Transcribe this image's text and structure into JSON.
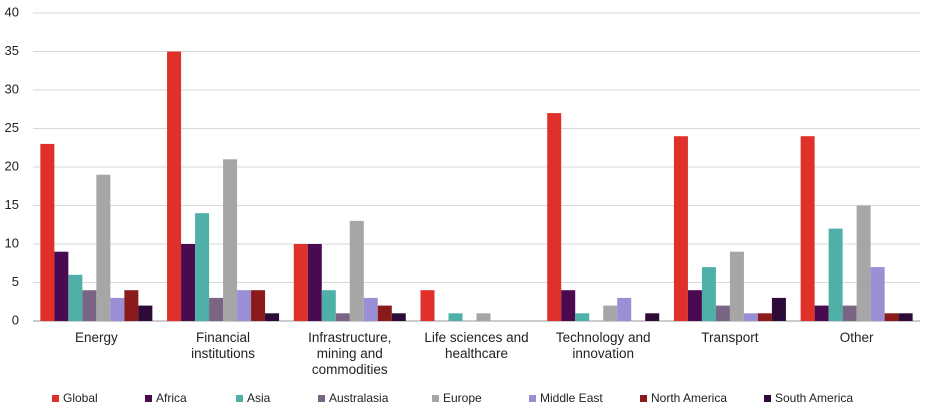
{
  "chart_data": {
    "type": "bar",
    "categories": [
      "Energy",
      "Financial institutions",
      "Infrastructure, mining and commodities",
      "Life sciences and healthcare",
      "Technology and innovation",
      "Transport",
      "Other"
    ],
    "series": [
      {
        "name": "Global",
        "color": "#e0302a",
        "values": [
          23,
          35,
          10,
          4,
          27,
          24,
          24
        ]
      },
      {
        "name": "Africa",
        "color": "#4a0a50",
        "values": [
          9,
          10,
          10,
          0,
          4,
          4,
          2
        ]
      },
      {
        "name": "Asia",
        "color": "#4fb0a8",
        "values": [
          6,
          14,
          4,
          1,
          1,
          7,
          12
        ]
      },
      {
        "name": "Australasia",
        "color": "#7b6585",
        "values": [
          4,
          3,
          1,
          0,
          0,
          2,
          2
        ]
      },
      {
        "name": "Europe",
        "color": "#a6a6a6",
        "values": [
          19,
          21,
          13,
          1,
          2,
          9,
          15
        ]
      },
      {
        "name": "Middle East",
        "color": "#9a8fd4",
        "values": [
          3,
          4,
          3,
          0,
          3,
          1,
          7
        ]
      },
      {
        "name": "North America",
        "color": "#8b1a1a",
        "values": [
          4,
          4,
          2,
          0,
          0,
          1,
          1
        ]
      },
      {
        "name": "South America",
        "color": "#2d0a38",
        "values": [
          2,
          1,
          1,
          0,
          1,
          3,
          1
        ]
      }
    ],
    "ylim": [
      0,
      40
    ],
    "yticks": [
      0,
      5,
      10,
      15,
      20,
      25,
      30,
      35,
      40
    ],
    "grid": true
  }
}
